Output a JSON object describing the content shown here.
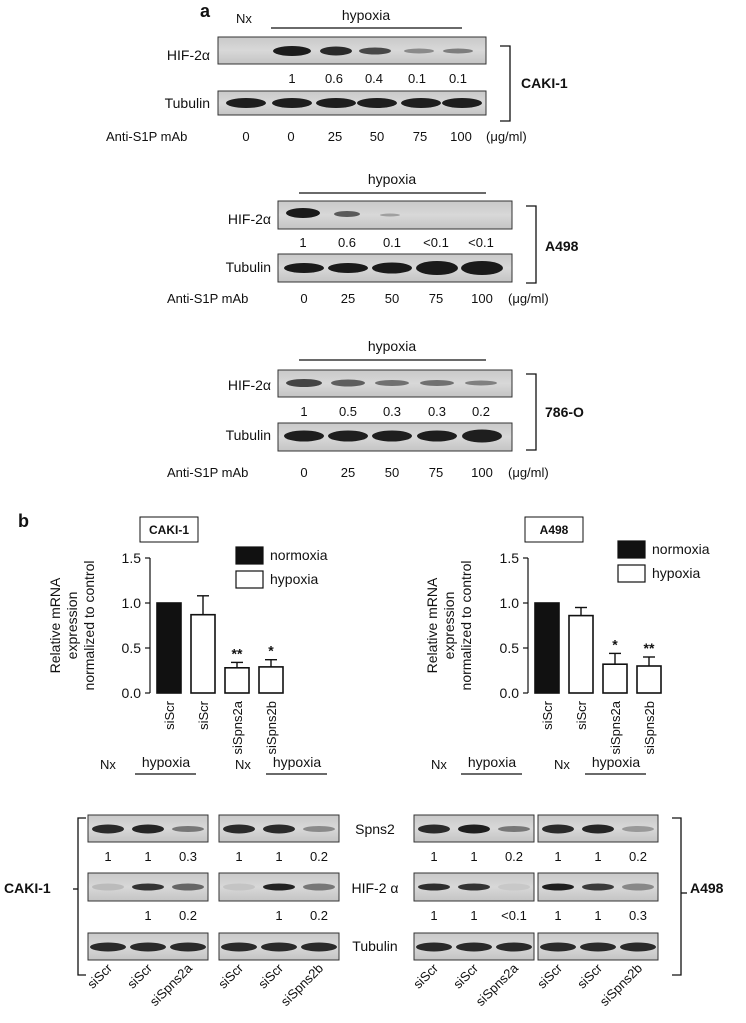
{
  "panel_a": {
    "label": "a",
    "blots": [
      {
        "cell_line": "CAKI-1",
        "nx_label": "Nx",
        "condition_label": "hypoxia",
        "hif_label": "HIF-2α",
        "tubulin_label": "Tubulin",
        "quant": [
          "1",
          "0.6",
          "0.4",
          "0.1",
          "0.1"
        ],
        "treatment_label": "Anti-S1P mAb",
        "doses": [
          "0",
          "0",
          "25",
          "50",
          "75",
          "100"
        ],
        "unit": "(μg/ml)"
      },
      {
        "cell_line": "A498",
        "condition_label": "hypoxia",
        "hif_label": "HIF-2α",
        "tubulin_label": "Tubulin",
        "quant": [
          "1",
          "0.6",
          "0.1",
          "<0.1",
          "<0.1"
        ],
        "treatment_label": "Anti-S1P mAb",
        "doses": [
          "0",
          "25",
          "50",
          "75",
          "100"
        ],
        "unit": "(μg/ml)"
      },
      {
        "cell_line": "786-O",
        "condition_label": "hypoxia",
        "hif_label": "HIF-2α",
        "tubulin_label": "Tubulin",
        "quant": [
          "1",
          "0.5",
          "0.3",
          "0.3",
          "0.2"
        ],
        "treatment_label": "Anti-S1P mAb",
        "doses": [
          "0",
          "25",
          "50",
          "75",
          "100"
        ],
        "unit": "(μg/ml)"
      }
    ]
  },
  "panel_b": {
    "label": "b",
    "ylabel_lines": [
      "Relative mRNA",
      "expression",
      "normalized to control"
    ],
    "legend": {
      "normoxia": "normoxia",
      "hypoxia": "hypoxia"
    },
    "blot_labels": {
      "nx": "Nx",
      "hypoxia": "hypoxia",
      "spns2": "Spns2",
      "hif": "HIF-2 α",
      "tubulin": "Tubulin",
      "left_cell_line": "CAKI-1",
      "right_cell_line": "A498"
    },
    "blots": [
      {
        "spns2_quant": [
          "1",
          "1",
          "0.3"
        ],
        "hif_quant": [
          "",
          "1",
          "0.2"
        ],
        "lanes": [
          "siScr",
          "siScr",
          "siSpns2a"
        ]
      },
      {
        "spns2_quant": [
          "1",
          "1",
          "0.2"
        ],
        "hif_quant": [
          "",
          "1",
          "0.2"
        ],
        "lanes": [
          "siScr",
          "siScr",
          "siSpns2b"
        ]
      },
      {
        "spns2_quant": [
          "1",
          "1",
          "0.2"
        ],
        "hif_quant": [
          "1",
          "1",
          "<0.1"
        ],
        "lanes": [
          "siScr",
          "siScr",
          "siSpns2a"
        ]
      },
      {
        "spns2_quant": [
          "1",
          "1",
          "0.2"
        ],
        "hif_quant": [
          "1",
          "1",
          "0.3"
        ],
        "lanes": [
          "siScr",
          "siScr",
          "siSpns2b"
        ]
      }
    ]
  },
  "chart_data": [
    {
      "type": "bar",
      "title": "CAKI-1",
      "categories": [
        "siScr",
        "siScr",
        "siSpns2a",
        "siSpns2b"
      ],
      "values": [
        1.0,
        0.87,
        0.28,
        0.29
      ],
      "errors": [
        0,
        0.21,
        0.06,
        0.08
      ],
      "condition": [
        "normoxia",
        "hypoxia",
        "hypoxia",
        "hypoxia"
      ],
      "significance": [
        "",
        "",
        "**",
        "*"
      ],
      "ylabel": "Relative mRNA expression normalized to control",
      "ylim": [
        0,
        1.5
      ],
      "yticks": [
        "0.0",
        "0.5",
        "1.0",
        "1.5"
      ],
      "legend": [
        "normoxia",
        "hypoxia"
      ],
      "colors": {
        "normoxia": "#111111",
        "hypoxia": "#ffffff"
      }
    },
    {
      "type": "bar",
      "title": "A498",
      "categories": [
        "siScr",
        "siScr",
        "siSpns2a",
        "siSpns2b"
      ],
      "values": [
        1.0,
        0.86,
        0.32,
        0.3
      ],
      "errors": [
        0,
        0.09,
        0.12,
        0.1
      ],
      "condition": [
        "normoxia",
        "hypoxia",
        "hypoxia",
        "hypoxia"
      ],
      "significance": [
        "",
        "",
        "*",
        "**"
      ],
      "ylabel": "Relative mRNA expression normalized to control",
      "ylim": [
        0,
        1.5
      ],
      "yticks": [
        "0.0",
        "0.5",
        "1.0",
        "1.5"
      ],
      "legend": [
        "normoxia",
        "hypoxia"
      ],
      "colors": {
        "normoxia": "#111111",
        "hypoxia": "#ffffff"
      }
    }
  ]
}
